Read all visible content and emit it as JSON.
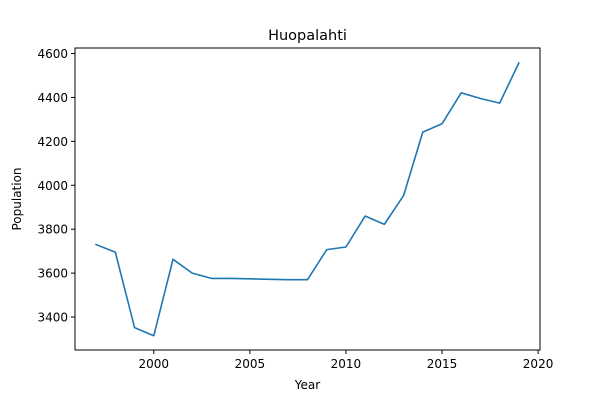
{
  "chart_data": {
    "type": "line",
    "title": "Huopalahti",
    "xlabel": "Year",
    "ylabel": "Population",
    "xlim": [
      1995.9,
      2020.1
    ],
    "ylim": [
      3250,
      4625
    ],
    "xticks": [
      2000,
      2005,
      2010,
      2015,
      2020
    ],
    "yticks": [
      3400,
      3600,
      3800,
      4000,
      4200,
      4400,
      4600
    ],
    "grid": false,
    "legend": "none",
    "series": [
      {
        "color": "#1f77b4",
        "x": [
          1997,
          1998,
          1999,
          2000,
          2001,
          2002,
          2003,
          2004,
          2005,
          2006,
          2007,
          2008,
          2009,
          2010,
          2011,
          2012,
          2013,
          2014,
          2015,
          2016,
          2017,
          2018,
          2019
        ],
        "y": [
          3730,
          3695,
          3352,
          3315,
          3663,
          3600,
          3576,
          3576,
          3574,
          3572,
          3570,
          3570,
          3707,
          3719,
          3860,
          3822,
          3953,
          4242,
          4280,
          4421,
          4395,
          4374,
          4557
        ]
      }
    ]
  }
}
